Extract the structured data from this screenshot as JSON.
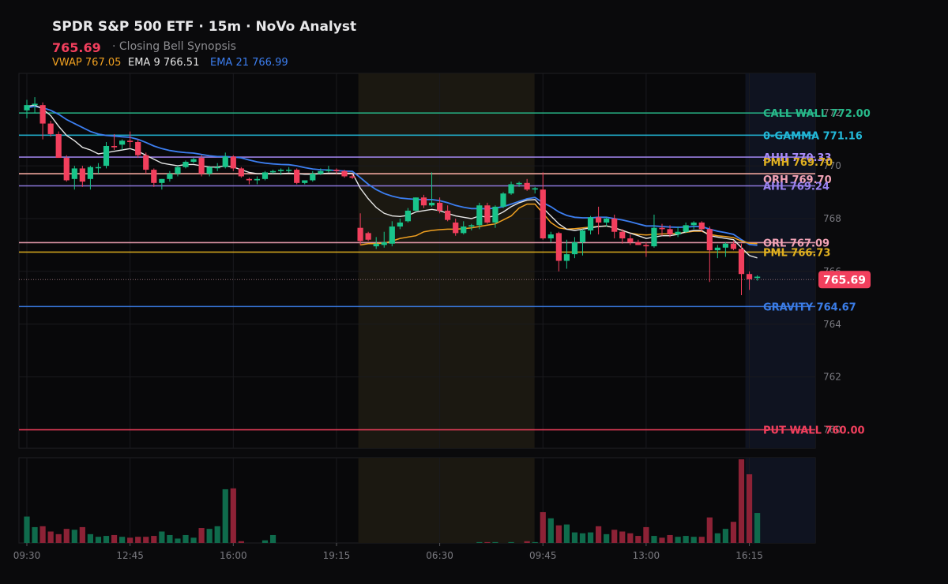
{
  "header": {
    "title": "SPDR S&P 500 ETF · 15m · NoVo Analyst",
    "price": "765.69",
    "subtitle": "· Closing Bell Synopsis",
    "vwap": "VWAP 767.05",
    "ema9": "EMA 9 766.51",
    "ema21": "EMA 21 766.99"
  },
  "colors": {
    "background": "#0a0a0c",
    "up": "#19c48a",
    "down": "#f23f5d",
    "vol_up": "#0f6b4c",
    "vol_down": "#8d2236",
    "vwap": "#f0a020",
    "ema9": "#e6e6e6",
    "ema21": "#3c7ef0",
    "overnight_shade": "#1b1811",
    "post_shade": "#0f1320"
  },
  "chart_data": {
    "type": "candlestick",
    "timeframe": "15m",
    "ylim": [
      759.3,
      773.5
    ],
    "yticks": [
      760,
      762,
      764,
      766,
      768,
      770,
      772
    ],
    "xticks": [
      {
        "i": 0,
        "label": "09:30"
      },
      {
        "i": 13,
        "label": "12:45"
      },
      {
        "i": 26,
        "label": "16:00"
      },
      {
        "i": 39,
        "label": "19:15"
      },
      {
        "i": 52,
        "label": "06:30"
      },
      {
        "i": 65,
        "label": "09:45"
      },
      {
        "i": 78,
        "label": "13:00"
      },
      {
        "i": 91,
        "label": "16:15"
      }
    ],
    "candles": [
      {
        "o": 772.1,
        "h": 772.5,
        "l": 771.8,
        "c": 772.3,
        "v": 30
      },
      {
        "o": 772.3,
        "h": 772.6,
        "l": 772.0,
        "c": 772.35,
        "v": 18
      },
      {
        "o": 772.3,
        "h": 772.4,
        "l": 771.0,
        "c": 771.6,
        "v": 19
      },
      {
        "o": 771.6,
        "h": 771.7,
        "l": 771.1,
        "c": 771.2,
        "v": 13
      },
      {
        "o": 771.2,
        "h": 771.3,
        "l": 770.3,
        "c": 770.3,
        "v": 10
      },
      {
        "o": 770.3,
        "h": 770.4,
        "l": 769.4,
        "c": 769.45,
        "v": 16
      },
      {
        "o": 769.5,
        "h": 770.0,
        "l": 769.1,
        "c": 769.9,
        "v": 15
      },
      {
        "o": 769.9,
        "h": 770.0,
        "l": 769.2,
        "c": 769.4,
        "v": 18
      },
      {
        "o": 769.5,
        "h": 770.0,
        "l": 769.1,
        "c": 769.95,
        "v": 10
      },
      {
        "o": 769.95,
        "h": 770.1,
        "l": 769.7,
        "c": 769.95,
        "v": 7
      },
      {
        "o": 770.0,
        "h": 770.9,
        "l": 769.9,
        "c": 770.75,
        "v": 8
      },
      {
        "o": 770.75,
        "h": 771.2,
        "l": 770.6,
        "c": 770.7,
        "v": 9
      },
      {
        "o": 770.8,
        "h": 771.0,
        "l": 770.6,
        "c": 770.95,
        "v": 7
      },
      {
        "o": 770.95,
        "h": 771.3,
        "l": 770.7,
        "c": 770.9,
        "v": 6
      },
      {
        "o": 770.9,
        "h": 771.0,
        "l": 770.3,
        "c": 770.4,
        "v": 7
      },
      {
        "o": 770.4,
        "h": 770.5,
        "l": 769.7,
        "c": 769.85,
        "v": 7
      },
      {
        "o": 769.85,
        "h": 769.9,
        "l": 769.2,
        "c": 769.35,
        "v": 8
      },
      {
        "o": 769.35,
        "h": 769.5,
        "l": 769.1,
        "c": 769.5,
        "v": 13
      },
      {
        "o": 769.5,
        "h": 769.8,
        "l": 769.4,
        "c": 769.7,
        "v": 9
      },
      {
        "o": 769.7,
        "h": 770.0,
        "l": 769.6,
        "c": 769.95,
        "v": 5
      },
      {
        "o": 769.95,
        "h": 770.2,
        "l": 769.9,
        "c": 770.15,
        "v": 9
      },
      {
        "o": 770.15,
        "h": 770.3,
        "l": 770.1,
        "c": 770.25,
        "v": 6
      },
      {
        "o": 770.3,
        "h": 770.4,
        "l": 769.6,
        "c": 769.7,
        "v": 17
      },
      {
        "o": 769.7,
        "h": 770.0,
        "l": 769.6,
        "c": 769.95,
        "v": 16
      },
      {
        "o": 769.95,
        "h": 770.1,
        "l": 769.8,
        "c": 769.95,
        "v": 19
      },
      {
        "o": 769.95,
        "h": 770.5,
        "l": 769.9,
        "c": 770.35,
        "v": 61
      },
      {
        "o": 770.35,
        "h": 770.4,
        "l": 769.8,
        "c": 769.9,
        "v": 62
      },
      {
        "o": 769.9,
        "h": 769.95,
        "l": 769.55,
        "c": 769.6,
        "v": 2
      },
      {
        "o": 769.5,
        "h": 769.55,
        "l": 769.3,
        "c": 769.45,
        "v": 0
      },
      {
        "o": 769.45,
        "h": 769.6,
        "l": 769.3,
        "c": 769.5,
        "v": 0
      },
      {
        "o": 769.5,
        "h": 769.8,
        "l": 769.45,
        "c": 769.75,
        "v": 3
      },
      {
        "o": 769.75,
        "h": 769.85,
        "l": 769.7,
        "c": 769.8,
        "v": 9
      },
      {
        "o": 769.8,
        "h": 769.9,
        "l": 769.65,
        "c": 769.85,
        "v": 0
      },
      {
        "o": 769.85,
        "h": 769.95,
        "l": 769.75,
        "c": 769.85,
        "v": 0
      },
      {
        "o": 769.85,
        "h": 769.9,
        "l": 769.3,
        "c": 769.35,
        "v": 0
      },
      {
        "o": 769.35,
        "h": 769.4,
        "l": 769.3,
        "c": 769.45,
        "v": 0
      },
      {
        "o": 769.45,
        "h": 769.8,
        "l": 769.4,
        "c": 769.7,
        "v": 0
      },
      {
        "o": 769.7,
        "h": 769.9,
        "l": 769.65,
        "c": 769.8,
        "v": 0
      },
      {
        "o": 769.8,
        "h": 770.0,
        "l": 769.75,
        "c": 769.85,
        "v": 0
      },
      {
        "o": 769.85,
        "h": 769.9,
        "l": 769.7,
        "c": 769.8,
        "v": 0
      },
      {
        "o": 769.8,
        "h": 769.85,
        "l": 769.55,
        "c": 769.6,
        "v": 0
      },
      {
        "o": 769.6,
        "h": 769.7,
        "l": 769.5,
        "c": 769.55,
        "v": 0
      },
      {
        "o": 767.65,
        "h": 768.2,
        "l": 767.0,
        "c": 767.15,
        "v": 0
      },
      {
        "o": 767.45,
        "h": 767.5,
        "l": 767.15,
        "c": 767.2,
        "v": 0
      },
      {
        "o": 766.95,
        "h": 767.3,
        "l": 766.85,
        "c": 767.05,
        "v": 0
      },
      {
        "o": 767.0,
        "h": 767.5,
        "l": 766.9,
        "c": 767.1,
        "v": 0
      },
      {
        "o": 767.05,
        "h": 767.9,
        "l": 766.95,
        "c": 767.7,
        "v": 0
      },
      {
        "o": 767.7,
        "h": 768.0,
        "l": 767.6,
        "c": 767.85,
        "v": 0
      },
      {
        "o": 767.9,
        "h": 768.4,
        "l": 767.85,
        "c": 768.3,
        "v": 0
      },
      {
        "o": 768.3,
        "h": 768.8,
        "l": 768.25,
        "c": 768.8,
        "v": 0
      },
      {
        "o": 768.8,
        "h": 768.9,
        "l": 768.4,
        "c": 768.5,
        "v": 0
      },
      {
        "o": 768.5,
        "h": 769.75,
        "l": 768.45,
        "c": 768.6,
        "v": 0
      },
      {
        "o": 768.6,
        "h": 768.8,
        "l": 768.2,
        "c": 768.3,
        "v": 0
      },
      {
        "o": 768.3,
        "h": 768.5,
        "l": 767.9,
        "c": 767.95,
        "v": 0
      },
      {
        "o": 767.85,
        "h": 768.0,
        "l": 767.35,
        "c": 767.45,
        "v": 0
      },
      {
        "o": 767.45,
        "h": 767.9,
        "l": 767.4,
        "c": 767.7,
        "v": 0
      },
      {
        "o": 767.7,
        "h": 767.8,
        "l": 767.55,
        "c": 767.75,
        "v": 0
      },
      {
        "o": 767.75,
        "h": 768.6,
        "l": 767.6,
        "c": 768.5,
        "v": 1
      },
      {
        "o": 768.5,
        "h": 768.6,
        "l": 767.8,
        "c": 767.85,
        "v": 1
      },
      {
        "o": 767.85,
        "h": 768.5,
        "l": 767.65,
        "c": 768.45,
        "v": 1
      },
      {
        "o": 768.45,
        "h": 769.0,
        "l": 768.4,
        "c": 768.95,
        "v": 0
      },
      {
        "o": 768.95,
        "h": 769.4,
        "l": 768.9,
        "c": 769.3,
        "v": 1
      },
      {
        "o": 769.3,
        "h": 769.4,
        "l": 769.2,
        "c": 769.35,
        "v": 0
      },
      {
        "o": 769.35,
        "h": 769.5,
        "l": 769.05,
        "c": 769.1,
        "v": 2
      },
      {
        "o": 769.1,
        "h": 769.2,
        "l": 768.95,
        "c": 769.15,
        "v": 1
      },
      {
        "o": 769.1,
        "h": 769.75,
        "l": 767.2,
        "c": 767.25,
        "v": 35
      },
      {
        "o": 767.25,
        "h": 767.5,
        "l": 767.1,
        "c": 767.4,
        "v": 28
      },
      {
        "o": 767.45,
        "h": 767.5,
        "l": 766.0,
        "c": 766.4,
        "v": 20
      },
      {
        "o": 766.4,
        "h": 767.2,
        "l": 766.1,
        "c": 766.65,
        "v": 21
      },
      {
        "o": 766.65,
        "h": 767.3,
        "l": 766.5,
        "c": 767.1,
        "v": 12
      },
      {
        "o": 767.1,
        "h": 767.6,
        "l": 766.6,
        "c": 767.55,
        "v": 11
      },
      {
        "o": 767.55,
        "h": 768.1,
        "l": 767.4,
        "c": 768.05,
        "v": 12
      },
      {
        "o": 768.05,
        "h": 768.45,
        "l": 767.4,
        "c": 767.85,
        "v": 19
      },
      {
        "o": 767.85,
        "h": 768.05,
        "l": 767.7,
        "c": 768.0,
        "v": 10
      },
      {
        "o": 768.0,
        "h": 768.15,
        "l": 767.25,
        "c": 767.5,
        "v": 15
      },
      {
        "o": 767.5,
        "h": 767.6,
        "l": 767.05,
        "c": 767.25,
        "v": 13
      },
      {
        "o": 767.25,
        "h": 767.4,
        "l": 767.0,
        "c": 767.1,
        "v": 11
      },
      {
        "o": 767.1,
        "h": 767.2,
        "l": 767.0,
        "c": 767.0,
        "v": 8
      },
      {
        "o": 767.0,
        "h": 767.1,
        "l": 766.55,
        "c": 766.95,
        "v": 18
      },
      {
        "o": 766.95,
        "h": 768.15,
        "l": 766.9,
        "c": 767.65,
        "v": 8
      },
      {
        "o": 767.65,
        "h": 767.8,
        "l": 767.35,
        "c": 767.6,
        "v": 6
      },
      {
        "o": 767.6,
        "h": 767.75,
        "l": 767.3,
        "c": 767.4,
        "v": 9
      },
      {
        "o": 767.4,
        "h": 767.7,
        "l": 767.3,
        "c": 767.5,
        "v": 7
      },
      {
        "o": 767.5,
        "h": 767.85,
        "l": 767.45,
        "c": 767.75,
        "v": 8
      },
      {
        "o": 767.75,
        "h": 767.9,
        "l": 767.6,
        "c": 767.85,
        "v": 7
      },
      {
        "o": 767.85,
        "h": 767.9,
        "l": 767.5,
        "c": 767.6,
        "v": 7
      },
      {
        "o": 767.6,
        "h": 767.7,
        "l": 765.6,
        "c": 766.8,
        "v": 29
      },
      {
        "o": 766.8,
        "h": 767.0,
        "l": 766.5,
        "c": 766.9,
        "v": 11
      },
      {
        "o": 766.9,
        "h": 767.1,
        "l": 766.55,
        "c": 767.05,
        "v": 16
      },
      {
        "o": 767.05,
        "h": 767.15,
        "l": 766.8,
        "c": 766.85,
        "v": 24
      },
      {
        "o": 766.85,
        "h": 767.05,
        "l": 765.1,
        "c": 765.9,
        "v": 95
      },
      {
        "o": 765.9,
        "h": 766.0,
        "l": 765.3,
        "c": 765.7,
        "v": 78
      },
      {
        "o": 765.75,
        "h": 765.85,
        "l": 765.65,
        "c": 765.8,
        "v": 34
      }
    ],
    "ema9": [
      772.25,
      772.3,
      772.15,
      771.9,
      771.5,
      771.15,
      770.95,
      770.7,
      770.6,
      770.45,
      770.5,
      770.55,
      770.6,
      770.65,
      770.55,
      770.4,
      770.25,
      770.1,
      770.05,
      770.0,
      770.05,
      770.05,
      770.0,
      769.95,
      769.95,
      770.0,
      769.95,
      769.85,
      769.75,
      769.7,
      769.7,
      769.7,
      769.7,
      769.72,
      769.7,
      769.68,
      769.68,
      769.7,
      769.72,
      769.72,
      769.72,
      769.72,
      769.15,
      768.75,
      768.42,
      768.2,
      768.1,
      768.08,
      768.12,
      768.25,
      768.3,
      768.35,
      768.3,
      768.2,
      768.1,
      768.05,
      768.0,
      768.1,
      768.05,
      768.1,
      768.25,
      768.45,
      768.6,
      768.7,
      768.72,
      768.4,
      768.1,
      767.8,
      767.6,
      767.55,
      767.6,
      767.65,
      767.7,
      767.72,
      767.65,
      767.55,
      767.45,
      767.35,
      767.25,
      767.3,
      767.35,
      767.35,
      767.4,
      767.5,
      767.55,
      767.55,
      767.35,
      767.3,
      767.25,
      767.2,
      766.9,
      766.6,
      766.51
    ],
    "ema21": [
      772.2,
      772.25,
      772.2,
      772.1,
      771.95,
      771.75,
      771.6,
      771.45,
      771.3,
      771.2,
      771.15,
      771.13,
      771.1,
      771.08,
      771.0,
      770.88,
      770.75,
      770.65,
      770.58,
      770.53,
      770.5,
      770.48,
      770.43,
      770.38,
      770.35,
      770.35,
      770.33,
      770.3,
      770.22,
      770.15,
      770.1,
      770.07,
      770.05,
      770.04,
      770.0,
      769.93,
      769.88,
      769.85,
      769.84,
      769.82,
      769.8,
      769.79,
      769.55,
      769.3,
      769.1,
      768.95,
      768.85,
      768.78,
      768.75,
      768.73,
      768.72,
      768.72,
      768.68,
      768.6,
      768.5,
      768.43,
      768.38,
      768.38,
      768.37,
      768.4,
      768.45,
      768.55,
      768.65,
      768.75,
      768.8,
      768.6,
      768.45,
      768.25,
      768.12,
      768.05,
      768.03,
      768.03,
      768.05,
      768.05,
      768.0,
      767.95,
      767.88,
      767.8,
      767.72,
      767.72,
      767.7,
      767.68,
      767.67,
      767.68,
      767.7,
      767.7,
      767.6,
      767.52,
      767.47,
      767.4,
      767.2,
      767.02,
      766.99
    ],
    "vwap": [
      null,
      null,
      null,
      null,
      null,
      null,
      null,
      null,
      null,
      null,
      null,
      null,
      null,
      null,
      null,
      null,
      null,
      null,
      null,
      null,
      null,
      null,
      null,
      null,
      null,
      null,
      null,
      null,
      null,
      null,
      null,
      null,
      null,
      null,
      null,
      null,
      null,
      null,
      null,
      null,
      null,
      null,
      767.0,
      767.05,
      767.05,
      767.07,
      767.15,
      767.25,
      767.3,
      767.35,
      767.5,
      767.55,
      767.58,
      767.6,
      767.6,
      767.62,
      767.65,
      767.7,
      767.75,
      767.8,
      767.95,
      768.1,
      768.4,
      768.55,
      768.55,
      768.2,
      767.85,
      767.65,
      767.6,
      767.62,
      767.65,
      767.68,
      767.7,
      767.72,
      767.65,
      767.55,
      767.45,
      767.4,
      767.38,
      767.4,
      767.42,
      767.42,
      767.44,
      767.48,
      767.52,
      767.52,
      767.4,
      767.35,
      767.32,
      767.28,
      767.15,
      767.07,
      767.05
    ]
  },
  "levels": [
    {
      "label": "CALL WALL 772.00",
      "value": 772.0,
      "color": "#27b98a"
    },
    {
      "label": "0-GAMMA 771.16",
      "value": 771.16,
      "color": "#22b8d8"
    },
    {
      "label": "AHH 770.33",
      "value": 770.33,
      "color": "#a88bfa"
    },
    {
      "label": "PMH 769.70",
      "value": 769.7,
      "color": "#e0b020"
    },
    {
      "label": "ORH 769.70",
      "value": 769.7,
      "color": "#f2a3b6"
    },
    {
      "label": "AHL 769.24",
      "value": 769.24,
      "color": "#9a82f0"
    },
    {
      "label": "ORL 767.09",
      "value": 767.09,
      "color": "#f2a3b6"
    },
    {
      "label": "PML 766.73",
      "value": 766.73,
      "color": "#e0b020"
    },
    {
      "label": "GRAVITY 764.67",
      "value": 764.67,
      "color": "#3b7de8"
    },
    {
      "label": "PUT WALL 760.00",
      "value": 760.0,
      "color": "#f23f5d"
    }
  ],
  "last_price": {
    "value": 765.69,
    "label": "765.69"
  }
}
